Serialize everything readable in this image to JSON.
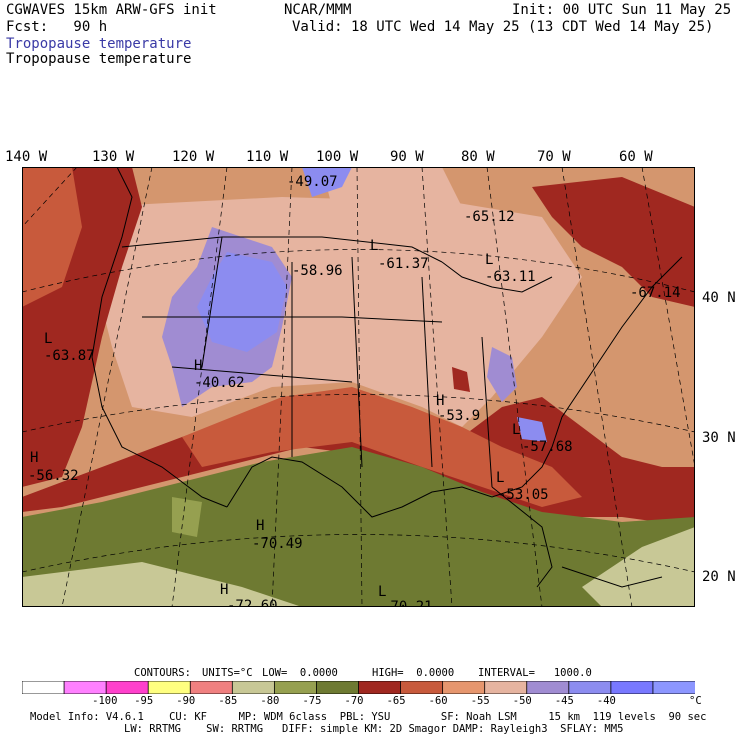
{
  "header": {
    "line1_left": "CGWAVES 15km ARW-GFS init",
    "line1_center": "NCAR/MMM",
    "line1_right": "Init: 00 UTC Sun 11 May 25",
    "line2_left": "Fcst:   90 h",
    "line2_right": "Valid: 18 UTC Wed 14 May 25 (13 CDT Wed 14 May 25)",
    "field_title_colored": "Tropopause temperature",
    "field_title_black": "Tropopause temperature"
  },
  "longitude_labels": [
    "140 W",
    "130 W",
    "120 W",
    "110 W",
    "100 W",
    "90 W",
    "80 W",
    "70 W",
    "60 W"
  ],
  "latitude_labels": [
    "40 N",
    "30 N",
    "20 N"
  ],
  "map_annotations": [
    {
      "text": "-49.07"
    },
    {
      "text": "-65.12"
    },
    {
      "text": "L"
    },
    {
      "text": "-61.37"
    },
    {
      "text": "-58.96"
    },
    {
      "text": "L"
    },
    {
      "text": "-63.11"
    },
    {
      "text": "-67.14"
    },
    {
      "text": "L"
    },
    {
      "text": "-63.87"
    },
    {
      "text": "H"
    },
    {
      "text": "-40.62"
    },
    {
      "text": "H"
    },
    {
      "text": "-56.32"
    },
    {
      "text": "H"
    },
    {
      "text": "-53.9"
    },
    {
      "text": "L"
    },
    {
      "text": "-57.68"
    },
    {
      "text": "L"
    },
    {
      "text": "-53.05"
    },
    {
      "text": "H"
    },
    {
      "text": "-70.49"
    },
    {
      "text": "H"
    },
    {
      "text": "-72.60"
    },
    {
      "text": "L"
    },
    {
      "text": "-70.21"
    }
  ],
  "contours_line": {
    "contours": "CONTOURS:",
    "units": "UNITS=°C",
    "low": "LOW=  0.0000",
    "high": "HIGH=  0.0000",
    "interval": "INTERVAL=   1000.0"
  },
  "colorbar": {
    "colors": [
      "#ffffff",
      "#ff80ff",
      "#ff40cc",
      "#ffff80",
      "#f08080",
      "#c8c896",
      "#96a050",
      "#6e7a32",
      "#a02820",
      "#c85a3c",
      "#e6966e",
      "#e6b4a0",
      "#a08cd2",
      "#8c8cf0",
      "#7878ff",
      "#8c96ff"
    ],
    "tick_labels": [
      "-100",
      "-95",
      "-90",
      "-85",
      "-80",
      "-75",
      "-70",
      "-65",
      "-60",
      "-55",
      "-50",
      "-45",
      "-40"
    ],
    "unit": "°C"
  },
  "model_info": {
    "line1": "Model Info: V4.6.1    CU: KF     MP: WDM 6class  PBL: YSU        SF: Noah LSM     15 km  119 levels  90 sec",
    "line2": "LW: RRTMG    SW: RRTMG   DIFF: simple KM: 2D Smagor DAMP: Rayleigh3  SFLAY: MM5"
  },
  "map_colors": {
    "ocean_warm": "#d4966e",
    "land_brown": "#e6b4a0",
    "dark_red": "#a02820",
    "red": "#c85a3c",
    "olive": "#6e7a32",
    "olive_light": "#96a050",
    "khaki": "#c8c896",
    "lavender": "#a08cd2",
    "blue": "#8c8cf0"
  }
}
